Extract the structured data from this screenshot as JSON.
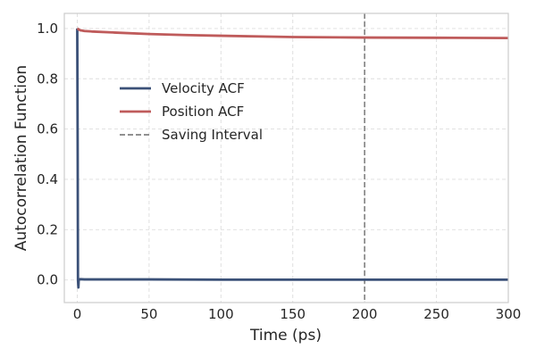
{
  "chart_data": {
    "type": "line",
    "xlabel": "Time (ps)",
    "ylabel": "Autocorrelation Function",
    "xlim": [
      -9,
      300
    ],
    "ylim": [
      -0.09,
      1.06
    ],
    "xticks": [
      0,
      50,
      100,
      150,
      200,
      250,
      300
    ],
    "yticks": [
      0.0,
      0.2,
      0.4,
      0.6,
      0.8,
      1.0
    ],
    "xtick_labels": [
      "0",
      "50",
      "100",
      "150",
      "200",
      "250",
      "300"
    ],
    "ytick_labels": [
      "0.0",
      "0.2",
      "0.4",
      "0.6",
      "0.8",
      "1.0"
    ],
    "grid": true,
    "legend_position": "upper-left",
    "series": [
      {
        "name": "Velocity ACF",
        "color": "#3b5178",
        "x": [
          0,
          0.3,
          0.5,
          0.8,
          1,
          2,
          5,
          10,
          50,
          100,
          150,
          200,
          250,
          300
        ],
        "y": [
          1.0,
          0.5,
          0.0,
          -0.03,
          0.0,
          0.003,
          0.002,
          0.002,
          0.002,
          0.001,
          0.001,
          0.001,
          0.001,
          0.001
        ]
      },
      {
        "name": "Position ACF",
        "color": "#bf5b5b",
        "x": [
          0,
          2,
          5,
          10,
          25,
          50,
          75,
          100,
          150,
          200,
          250,
          300
        ],
        "y": [
          1.0,
          0.993,
          0.99,
          0.988,
          0.984,
          0.978,
          0.974,
          0.971,
          0.966,
          0.964,
          0.963,
          0.962
        ]
      }
    ],
    "vlines": [
      {
        "name": "Saving Interval",
        "x": 200,
        "color": "#808080",
        "style": "dashed"
      }
    ]
  }
}
